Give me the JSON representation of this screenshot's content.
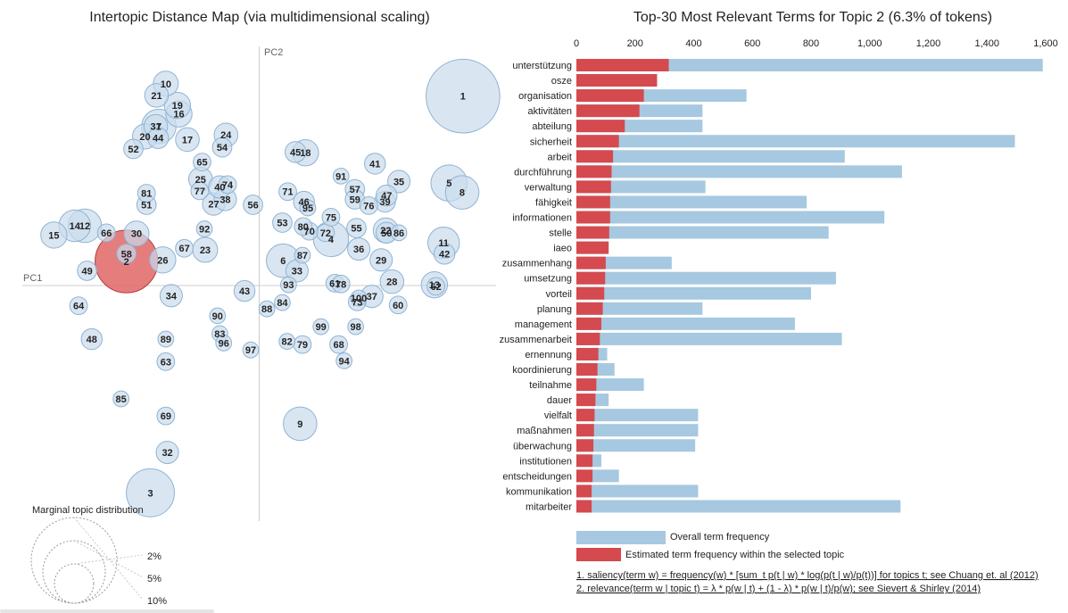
{
  "left": {
    "title": "Intertopic Distance Map (via multidimensional scaling)",
    "pc1_label": "PC1",
    "pc2_label": "PC2",
    "marginal_title": "Marginal topic distribution",
    "marginal_labels": [
      "2%",
      "5%",
      "10%"
    ],
    "selected_topic": "2"
  },
  "right": {
    "title": "Top-30 Most Relevant Terms for Topic 2 (6.3% of tokens)",
    "legend_overall": "Overall term frequency",
    "legend_estimated": "Estimated term frequency within the selected topic",
    "footnote1": "1. saliency(term w) = frequency(w) * [sum_t p(t | w) * log(p(t | w)/p(t))] for topics t; see Chuang et. al (2012)",
    "footnote2": "2. relevance(term w | topic t) = λ * p(w | t) + (1 - λ) * p(w | t)/p(w); see Sievert & Shirley (2014)"
  },
  "colors": {
    "overall": "#a6c8e0",
    "estimated": "#d44a4e",
    "bubble_fill": "#c9dcec",
    "bubble_stroke": "#8fb3d3",
    "selected_fill": "#e06666",
    "selected_stroke": "#b63a3a",
    "axis": "#cccccc",
    "text": "#222222"
  },
  "chart_data": [
    {
      "type": "bar",
      "orientation": "horizontal",
      "title": "Top-30 Most Relevant Terms for Topic 2 (6.3% of tokens)",
      "xlim": [
        0,
        1600
      ],
      "xticks": [
        "0",
        "200",
        "400",
        "600",
        "800",
        "1,000",
        "1,200",
        "1,400",
        "1,600"
      ],
      "categories": [
        "unterstützung",
        "osze",
        "organisation",
        "aktivitäten",
        "abteilung",
        "sicherheit",
        "arbeit",
        "durchführung",
        "verwaltung",
        "fähigkeit",
        "informationen",
        "stelle",
        "iaeo",
        "zusammenhang",
        "umsetzung",
        "vorteil",
        "planung",
        "management",
        "zusammenarbeit",
        "ernennung",
        "koordinierung",
        "teilnahme",
        "dauer",
        "vielfalt",
        "maßnahmen",
        "überwachung",
        "institutionen",
        "entscheidungen",
        "kommunikation",
        "mitarbeiter"
      ],
      "series": [
        {
          "name": "Overall term frequency",
          "values": [
            1590,
            275,
            580,
            430,
            430,
            1495,
            915,
            1110,
            440,
            785,
            1050,
            860,
            110,
            325,
            885,
            800,
            430,
            745,
            905,
            105,
            130,
            230,
            110,
            415,
            415,
            405,
            85,
            145,
            415,
            1105
          ]
        },
        {
          "name": "Estimated term frequency within the selected topic",
          "values": [
            315,
            275,
            230,
            215,
            165,
            145,
            125,
            120,
            118,
            115,
            115,
            112,
            110,
            100,
            98,
            95,
            90,
            85,
            80,
            75,
            72,
            68,
            65,
            62,
            60,
            58,
            55,
            55,
            52,
            52
          ]
        }
      ],
      "legend": "bottom"
    },
    {
      "type": "scatter",
      "title": "Intertopic Distance Map (via multidimensional scaling)",
      "xlabel": "PC1",
      "ylabel": "PC2",
      "xlim": [
        -0.3,
        0.3
      ],
      "ylim": [
        -0.3,
        0.3
      ],
      "grid": false,
      "marker_size": "marginal topic distribution (%)",
      "points": [
        {
          "label": "1",
          "x": 0.264,
          "y": 0.244,
          "size": 8.7
        },
        {
          "label": "2",
          "x": -0.172,
          "y": 0.031,
          "size": 6.3
        },
        {
          "label": "3",
          "x": -0.141,
          "y": -0.267,
          "size": 3.7
        },
        {
          "label": "4",
          "x": 0.093,
          "y": 0.06,
          "size": 2.0
        },
        {
          "label": "5",
          "x": 0.246,
          "y": 0.132,
          "size": 2.1
        },
        {
          "label": "6",
          "x": 0.031,
          "y": 0.032,
          "size": 1.8
        },
        {
          "label": "7",
          "x": -0.13,
          "y": 0.205,
          "size": 1.9
        },
        {
          "label": "8",
          "x": 0.263,
          "y": 0.12,
          "size": 1.8
        },
        {
          "label": "9",
          "x": 0.053,
          "y": -0.178,
          "size": 1.8
        },
        {
          "label": "10",
          "x": -0.121,
          "y": 0.26,
          "size": 1.0
        },
        {
          "label": "11",
          "x": 0.239,
          "y": 0.055,
          "size": 1.6
        },
        {
          "label": "12",
          "x": -0.226,
          "y": 0.077,
          "size": 1.8
        },
        {
          "label": "13",
          "x": 0.227,
          "y": 0.001,
          "size": 1.1
        },
        {
          "label": "14",
          "x": -0.239,
          "y": 0.077,
          "size": 1.6
        },
        {
          "label": "15",
          "x": -0.266,
          "y": 0.065,
          "size": 1.1
        },
        {
          "label": "16",
          "x": -0.104,
          "y": 0.221,
          "size": 1.1
        },
        {
          "label": "17",
          "x": -0.093,
          "y": 0.188,
          "size": 0.9
        },
        {
          "label": "18",
          "x": 0.06,
          "y": 0.171,
          "size": 1.1
        },
        {
          "label": "19",
          "x": -0.106,
          "y": 0.232,
          "size": 1.1
        },
        {
          "label": "20",
          "x": -0.148,
          "y": 0.192,
          "size": 1.0
        },
        {
          "label": "21",
          "x": -0.133,
          "y": 0.245,
          "size": 0.9
        },
        {
          "label": "22",
          "x": 0.164,
          "y": 0.071,
          "size": 1.0
        },
        {
          "label": "23",
          "x": -0.07,
          "y": 0.046,
          "size": 1.0
        },
        {
          "label": "24",
          "x": -0.043,
          "y": 0.194,
          "size": 0.9
        },
        {
          "label": "25",
          "x": -0.076,
          "y": 0.137,
          "size": 0.9
        },
        {
          "label": "26",
          "x": -0.125,
          "y": 0.033,
          "size": 1.1
        },
        {
          "label": "27",
          "x": -0.059,
          "y": 0.105,
          "size": 0.8
        },
        {
          "label": "28",
          "x": 0.172,
          "y": 0.005,
          "size": 0.9
        },
        {
          "label": "29",
          "x": 0.158,
          "y": 0.033,
          "size": 0.8
        },
        {
          "label": "30",
          "x": -0.159,
          "y": 0.067,
          "size": 1.0
        },
        {
          "label": "31",
          "x": -0.134,
          "y": 0.205,
          "size": 0.9
        },
        {
          "label": "32",
          "x": -0.119,
          "y": -0.215,
          "size": 0.8
        },
        {
          "label": "33",
          "x": 0.049,
          "y": 0.019,
          "size": 0.8
        },
        {
          "label": "34",
          "x": -0.114,
          "y": -0.013,
          "size": 0.8
        },
        {
          "label": "35",
          "x": 0.181,
          "y": 0.134,
          "size": 0.8
        },
        {
          "label": "36",
          "x": 0.129,
          "y": 0.047,
          "size": 0.8
        },
        {
          "label": "37",
          "x": 0.146,
          "y": -0.014,
          "size": 0.8
        },
        {
          "label": "38",
          "x": -0.044,
          "y": 0.111,
          "size": 0.8
        },
        {
          "label": "39",
          "x": 0.163,
          "y": 0.108,
          "size": 0.7
        },
        {
          "label": "40",
          "x": -0.051,
          "y": 0.127,
          "size": 0.8
        },
        {
          "label": "41",
          "x": 0.15,
          "y": 0.157,
          "size": 0.7
        },
        {
          "label": "42",
          "x": 0.24,
          "y": 0.041,
          "size": 0.7
        },
        {
          "label": "43",
          "x": -0.019,
          "y": -0.007,
          "size": 0.7
        },
        {
          "label": "44",
          "x": -0.131,
          "y": 0.19,
          "size": 0.7
        },
        {
          "label": "45",
          "x": 0.047,
          "y": 0.172,
          "size": 0.7
        },
        {
          "label": "46",
          "x": 0.058,
          "y": 0.108,
          "size": 0.7
        },
        {
          "label": "47",
          "x": 0.165,
          "y": 0.116,
          "size": 0.7
        },
        {
          "label": "48",
          "x": -0.217,
          "y": -0.069,
          "size": 0.7
        },
        {
          "label": "49",
          "x": -0.223,
          "y": 0.019,
          "size": 0.6
        },
        {
          "label": "50",
          "x": 0.165,
          "y": 0.068,
          "size": 0.7
        },
        {
          "label": "51",
          "x": -0.146,
          "y": 0.104,
          "size": 0.6
        },
        {
          "label": "52",
          "x": -0.163,
          "y": 0.176,
          "size": 0.6
        },
        {
          "label": "53",
          "x": 0.03,
          "y": 0.081,
          "size": 0.6
        },
        {
          "label": "54",
          "x": -0.048,
          "y": 0.178,
          "size": 0.6
        },
        {
          "label": "55",
          "x": 0.126,
          "y": 0.074,
          "size": 0.6
        },
        {
          "label": "56",
          "x": -0.008,
          "y": 0.104,
          "size": 0.6
        },
        {
          "label": "57",
          "x": 0.124,
          "y": 0.124,
          "size": 0.6
        },
        {
          "label": "58",
          "x": -0.172,
          "y": 0.041,
          "size": 0.6
        },
        {
          "label": "59",
          "x": 0.124,
          "y": 0.111,
          "size": 0.6
        },
        {
          "label": "60",
          "x": 0.18,
          "y": -0.025,
          "size": 0.5
        },
        {
          "label": "61",
          "x": 0.098,
          "y": 0.003,
          "size": 0.5
        },
        {
          "label": "62",
          "x": 0.229,
          "y": -0.001,
          "size": 0.5
        },
        {
          "label": "63",
          "x": -0.121,
          "y": -0.098,
          "size": 0.5
        },
        {
          "label": "64",
          "x": -0.234,
          "y": -0.026,
          "size": 0.5
        },
        {
          "label": "65",
          "x": -0.074,
          "y": 0.159,
          "size": 0.5
        },
        {
          "label": "66",
          "x": -0.198,
          "y": 0.068,
          "size": 0.5
        },
        {
          "label": "67",
          "x": -0.097,
          "y": 0.048,
          "size": 0.5
        },
        {
          "label": "68",
          "x": 0.103,
          "y": -0.076,
          "size": 0.5
        },
        {
          "label": "69",
          "x": -0.121,
          "y": -0.168,
          "size": 0.5
        },
        {
          "label": "70",
          "x": 0.065,
          "y": 0.07,
          "size": 0.5
        },
        {
          "label": "71",
          "x": 0.037,
          "y": 0.121,
          "size": 0.5
        },
        {
          "label": "72",
          "x": 0.086,
          "y": 0.068,
          "size": 0.5
        },
        {
          "label": "73",
          "x": 0.127,
          "y": -0.021,
          "size": 0.5
        },
        {
          "label": "74",
          "x": -0.041,
          "y": 0.13,
          "size": 0.5
        },
        {
          "label": "75",
          "x": 0.093,
          "y": 0.088,
          "size": 0.5
        },
        {
          "label": "76",
          "x": 0.142,
          "y": 0.103,
          "size": 0.5
        },
        {
          "label": "77",
          "x": -0.077,
          "y": 0.122,
          "size": 0.5
        },
        {
          "label": "78",
          "x": 0.106,
          "y": 0.002,
          "size": 0.5
        },
        {
          "label": "79",
          "x": 0.056,
          "y": -0.076,
          "size": 0.5
        },
        {
          "label": "80",
          "x": 0.057,
          "y": 0.076,
          "size": 0.5
        },
        {
          "label": "81",
          "x": -0.146,
          "y": 0.119,
          "size": 0.5
        },
        {
          "label": "82",
          "x": 0.036,
          "y": -0.072,
          "size": 0.4
        },
        {
          "label": "83",
          "x": -0.051,
          "y": -0.062,
          "size": 0.4
        },
        {
          "label": "84",
          "x": 0.03,
          "y": -0.022,
          "size": 0.4
        },
        {
          "label": "85",
          "x": -0.179,
          "y": -0.146,
          "size": 0.4
        },
        {
          "label": "86",
          "x": 0.181,
          "y": 0.068,
          "size": 0.4
        },
        {
          "label": "87",
          "x": 0.056,
          "y": 0.039,
          "size": 0.4
        },
        {
          "label": "88",
          "x": 0.01,
          "y": -0.03,
          "size": 0.4
        },
        {
          "label": "89",
          "x": -0.121,
          "y": -0.069,
          "size": 0.4
        },
        {
          "label": "90",
          "x": -0.054,
          "y": -0.039,
          "size": 0.4
        },
        {
          "label": "91",
          "x": 0.106,
          "y": 0.141,
          "size": 0.4
        },
        {
          "label": "92",
          "x": -0.071,
          "y": 0.073,
          "size": 0.4
        },
        {
          "label": "93",
          "x": 0.038,
          "y": 0.001,
          "size": 0.4
        },
        {
          "label": "94",
          "x": 0.11,
          "y": -0.097,
          "size": 0.4
        },
        {
          "label": "95",
          "x": 0.063,
          "y": 0.1,
          "size": 0.4
        },
        {
          "label": "96",
          "x": -0.046,
          "y": -0.074,
          "size": 0.4
        },
        {
          "label": "97",
          "x": -0.011,
          "y": -0.083,
          "size": 0.4
        },
        {
          "label": "98",
          "x": 0.125,
          "y": -0.053,
          "size": 0.4
        },
        {
          "label": "99",
          "x": 0.08,
          "y": -0.053,
          "size": 0.4
        },
        {
          "label": "100",
          "x": 0.129,
          "y": -0.016,
          "size": 0.4
        }
      ]
    }
  ]
}
